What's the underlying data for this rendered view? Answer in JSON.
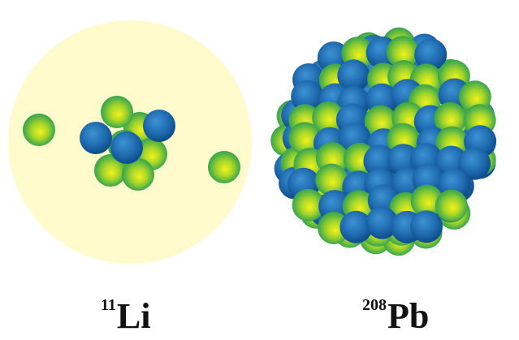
{
  "nuclei": [
    {
      "key": "li",
      "mass_number": "11",
      "symbol": "Li",
      "protons": 3,
      "neutrons": 8,
      "halo_neutrons": 2,
      "has_halo": true
    },
    {
      "key": "pb",
      "mass_number": "208",
      "symbol": "Pb",
      "protons": 82,
      "neutrons": 126,
      "has_halo": false
    }
  ],
  "colors": {
    "halo": "#fffbcc",
    "neutron_core": "#f2f21a",
    "neutron_mid": "#8ccc2e",
    "neutron_edge": "#2a9a52",
    "proton_core": "#3b8fd0",
    "proton_edge": "#0d4b8a"
  },
  "legend_semantics": {
    "green_yellow_sphere": "neutron",
    "blue_sphere": "proton"
  }
}
